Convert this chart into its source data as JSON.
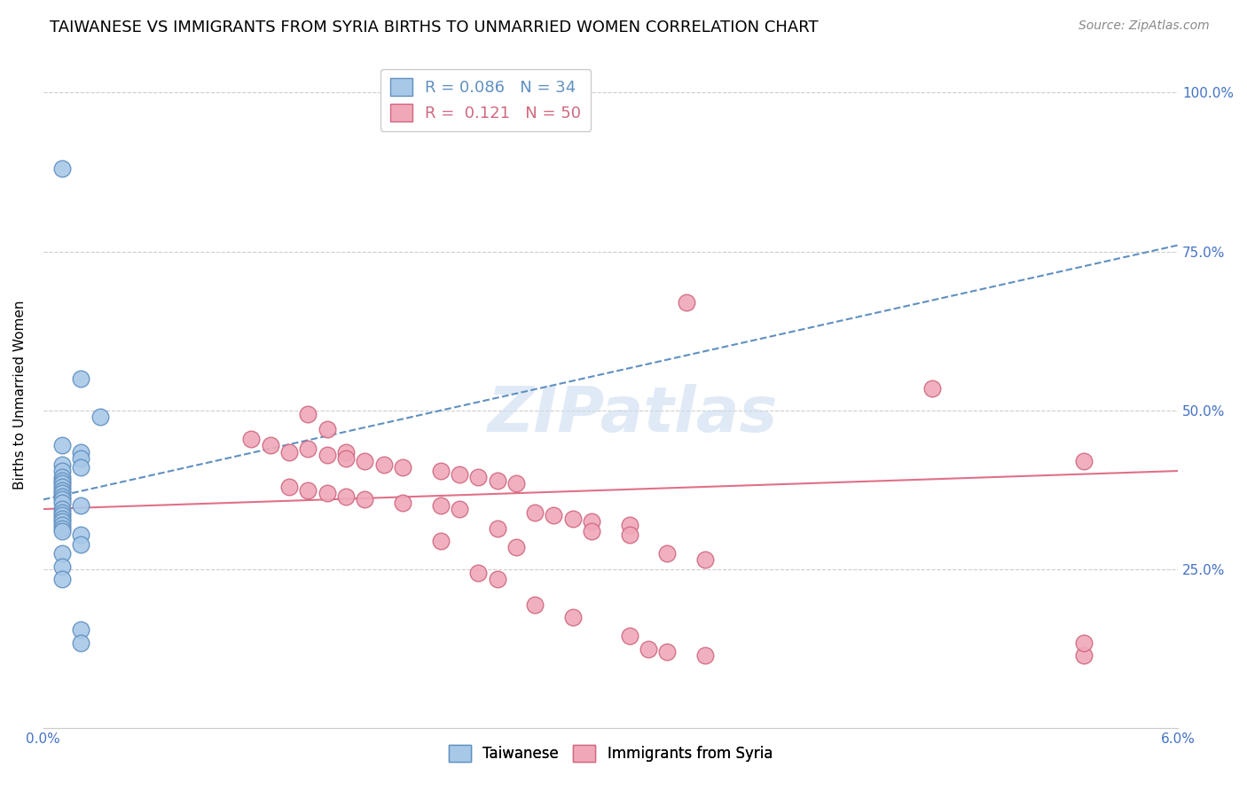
{
  "title": "TAIWANESE VS IMMIGRANTS FROM SYRIA BIRTHS TO UNMARRIED WOMEN CORRELATION CHART",
  "source": "Source: ZipAtlas.com",
  "ylabel": "Births to Unmarried Women",
  "xlim": [
    0.0,
    0.06
  ],
  "ylim": [
    0.0,
    1.05
  ],
  "yticks": [
    0.0,
    0.25,
    0.5,
    0.75,
    1.0
  ],
  "ytick_labels": [
    "",
    "25.0%",
    "50.0%",
    "75.0%",
    "100.0%"
  ],
  "watermark": "ZIPatlas",
  "legend_r1": "R = 0.086   N = 34",
  "legend_r2": "R =  0.121   N = 50",
  "taiwanese_scatter": [
    [
      0.001,
      0.88
    ],
    [
      0.002,
      0.55
    ],
    [
      0.003,
      0.49
    ],
    [
      0.001,
      0.445
    ],
    [
      0.002,
      0.435
    ],
    [
      0.002,
      0.425
    ],
    [
      0.001,
      0.415
    ],
    [
      0.002,
      0.41
    ],
    [
      0.001,
      0.405
    ],
    [
      0.001,
      0.395
    ],
    [
      0.001,
      0.39
    ],
    [
      0.001,
      0.385
    ],
    [
      0.001,
      0.38
    ],
    [
      0.001,
      0.375
    ],
    [
      0.001,
      0.37
    ],
    [
      0.001,
      0.365
    ],
    [
      0.001,
      0.36
    ],
    [
      0.001,
      0.355
    ],
    [
      0.002,
      0.35
    ],
    [
      0.001,
      0.345
    ],
    [
      0.001,
      0.34
    ],
    [
      0.001,
      0.335
    ],
    [
      0.001,
      0.33
    ],
    [
      0.001,
      0.325
    ],
    [
      0.001,
      0.32
    ],
    [
      0.001,
      0.315
    ],
    [
      0.001,
      0.31
    ],
    [
      0.002,
      0.305
    ],
    [
      0.002,
      0.29
    ],
    [
      0.001,
      0.275
    ],
    [
      0.001,
      0.255
    ],
    [
      0.001,
      0.235
    ],
    [
      0.002,
      0.155
    ],
    [
      0.002,
      0.135
    ]
  ],
  "syria_scatter": [
    [
      0.034,
      0.67
    ],
    [
      0.047,
      0.535
    ],
    [
      0.055,
      0.42
    ],
    [
      0.014,
      0.495
    ],
    [
      0.015,
      0.47
    ],
    [
      0.011,
      0.455
    ],
    [
      0.012,
      0.445
    ],
    [
      0.014,
      0.44
    ],
    [
      0.016,
      0.435
    ],
    [
      0.013,
      0.435
    ],
    [
      0.015,
      0.43
    ],
    [
      0.016,
      0.425
    ],
    [
      0.017,
      0.42
    ],
    [
      0.018,
      0.415
    ],
    [
      0.019,
      0.41
    ],
    [
      0.021,
      0.405
    ],
    [
      0.022,
      0.4
    ],
    [
      0.023,
      0.395
    ],
    [
      0.024,
      0.39
    ],
    [
      0.025,
      0.385
    ],
    [
      0.013,
      0.38
    ],
    [
      0.014,
      0.375
    ],
    [
      0.015,
      0.37
    ],
    [
      0.016,
      0.365
    ],
    [
      0.017,
      0.36
    ],
    [
      0.019,
      0.355
    ],
    [
      0.021,
      0.35
    ],
    [
      0.022,
      0.345
    ],
    [
      0.026,
      0.34
    ],
    [
      0.027,
      0.335
    ],
    [
      0.028,
      0.33
    ],
    [
      0.029,
      0.325
    ],
    [
      0.031,
      0.32
    ],
    [
      0.024,
      0.315
    ],
    [
      0.029,
      0.31
    ],
    [
      0.031,
      0.305
    ],
    [
      0.021,
      0.295
    ],
    [
      0.025,
      0.285
    ],
    [
      0.033,
      0.275
    ],
    [
      0.035,
      0.265
    ],
    [
      0.023,
      0.245
    ],
    [
      0.024,
      0.235
    ],
    [
      0.026,
      0.195
    ],
    [
      0.028,
      0.175
    ],
    [
      0.031,
      0.145
    ],
    [
      0.032,
      0.125
    ],
    [
      0.033,
      0.12
    ],
    [
      0.035,
      0.115
    ],
    [
      0.055,
      0.115
    ],
    [
      0.055,
      0.135
    ]
  ],
  "taiwanese_line_x": [
    0.0,
    0.06
  ],
  "taiwanese_line_y": [
    0.36,
    0.76
  ],
  "syria_line_x": [
    0.0,
    0.06
  ],
  "syria_line_y": [
    0.345,
    0.405
  ],
  "scatter_color_taiwanese": "#a8c8e8",
  "scatter_color_syria": "#f0a8b8",
  "scatter_edgecolor_taiwanese": "#6090c0",
  "scatter_edgecolor_syria": "#d06880",
  "taiwanese_line_color": "#6090c0",
  "syria_line_color": "#e07088",
  "background_color": "#ffffff",
  "grid_color": "#cccccc",
  "title_fontsize": 13,
  "axis_label_fontsize": 11,
  "tick_fontsize": 11,
  "tick_color": "#4472c4",
  "source_fontsize": 10,
  "source_color": "#888888"
}
